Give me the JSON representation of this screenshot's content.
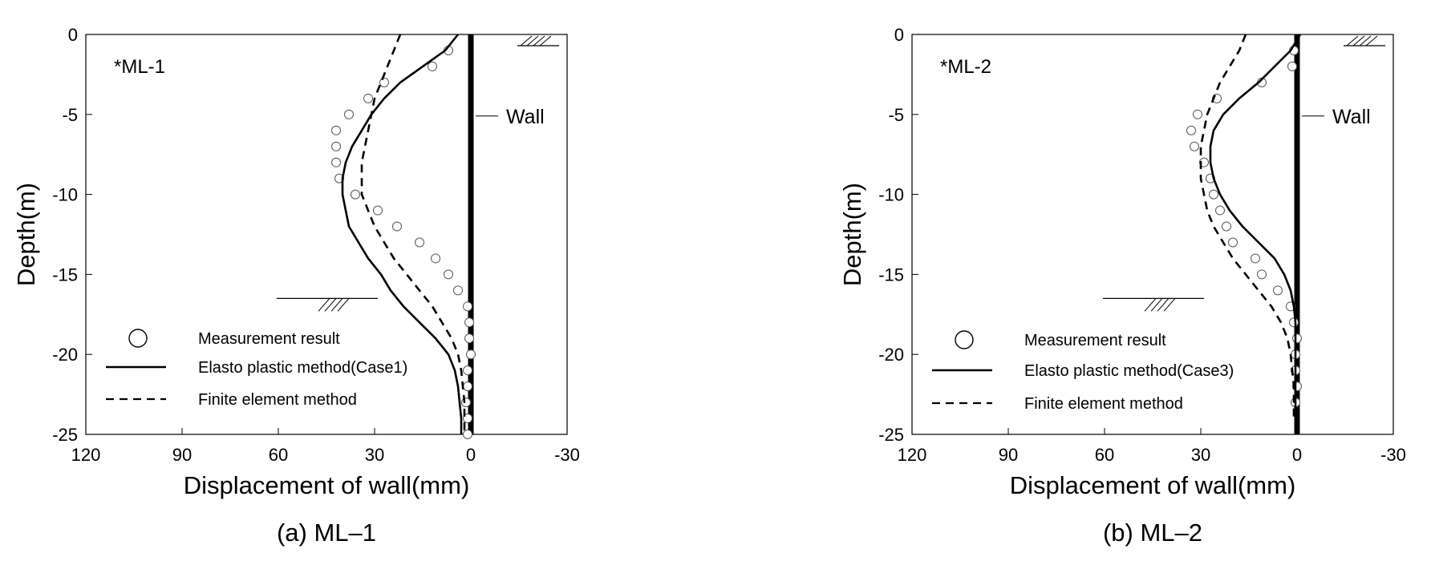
{
  "chart_data": [
    {
      "type": "scatter",
      "panel_label": "*ML-1",
      "caption": "(a) ML–1",
      "xlabel": "Displacement of wall(mm)",
      "ylabel": "Depth(m)",
      "xlim": [
        120,
        -30
      ],
      "ylim": [
        -25,
        0
      ],
      "x_ticks": [
        120,
        90,
        60,
        30,
        0,
        -30
      ],
      "y_ticks": [
        0,
        -5,
        -10,
        -15,
        -20,
        -25
      ],
      "wall_label": "Wall",
      "excavation_depth": -16.5,
      "legend": {
        "measurement": "Measurement result",
        "elasto_plastic": "Elasto plastic method(Case1)",
        "fem": "Finite element method"
      },
      "series": [
        {
          "name": "Measurement result",
          "style": "circle",
          "points": [
            [
              7,
              -1
            ],
            [
              12,
              -2
            ],
            [
              27,
              -3
            ],
            [
              32,
              -4
            ],
            [
              38,
              -5
            ],
            [
              42,
              -6
            ],
            [
              42,
              -7
            ],
            [
              42,
              -8
            ],
            [
              41,
              -9
            ],
            [
              36,
              -10
            ],
            [
              29,
              -11
            ],
            [
              23,
              -12
            ],
            [
              16,
              -13
            ],
            [
              11,
              -14
            ],
            [
              7,
              -15
            ],
            [
              4,
              -16
            ],
            [
              1,
              -17
            ],
            [
              0.5,
              -18
            ],
            [
              0.5,
              -19
            ],
            [
              0,
              -20
            ],
            [
              1,
              -21
            ],
            [
              1,
              -22
            ],
            [
              1.5,
              -23
            ],
            [
              1,
              -24
            ],
            [
              1,
              -25
            ]
          ]
        },
        {
          "name": "Elasto plastic method(Case1)",
          "style": "solid",
          "points": [
            [
              4,
              0
            ],
            [
              8,
              -1
            ],
            [
              15,
              -2
            ],
            [
              22,
              -3
            ],
            [
              27,
              -4
            ],
            [
              31,
              -5
            ],
            [
              34,
              -6
            ],
            [
              37,
              -7
            ],
            [
              39,
              -8
            ],
            [
              40,
              -9
            ],
            [
              40,
              -10
            ],
            [
              39,
              -11
            ],
            [
              38,
              -12
            ],
            [
              35,
              -13
            ],
            [
              32,
              -14
            ],
            [
              28,
              -15
            ],
            [
              25,
              -16
            ],
            [
              21,
              -17
            ],
            [
              16,
              -18
            ],
            [
              11,
              -19
            ],
            [
              7,
              -20
            ],
            [
              5,
              -21
            ],
            [
              4,
              -22
            ],
            [
              3.5,
              -23
            ],
            [
              3,
              -24
            ],
            [
              3,
              -25
            ]
          ]
        },
        {
          "name": "Finite element method",
          "style": "dashed",
          "points": [
            [
              22,
              0
            ],
            [
              24,
              -1
            ],
            [
              26,
              -2
            ],
            [
              28,
              -3
            ],
            [
              30,
              -4
            ],
            [
              31,
              -5
            ],
            [
              32,
              -6
            ],
            [
              33,
              -7
            ],
            [
              34,
              -8
            ],
            [
              34,
              -9
            ],
            [
              34,
              -10
            ],
            [
              32,
              -11
            ],
            [
              30,
              -12
            ],
            [
              27,
              -13
            ],
            [
              24,
              -14
            ],
            [
              20,
              -15
            ],
            [
              16,
              -16
            ],
            [
              12,
              -17
            ],
            [
              9,
              -18
            ],
            [
              6,
              -19
            ],
            [
              4,
              -20
            ],
            [
              3,
              -21
            ],
            [
              2.5,
              -22
            ],
            [
              2,
              -23
            ],
            [
              2,
              -24
            ],
            [
              2,
              -25
            ]
          ]
        }
      ]
    },
    {
      "type": "scatter",
      "panel_label": "*ML-2",
      "caption": "(b) ML–2",
      "xlabel": "Displacement of wall(mm)",
      "ylabel": "Depth(m)",
      "xlim": [
        120,
        -30
      ],
      "ylim": [
        -25,
        0
      ],
      "x_ticks": [
        120,
        90,
        60,
        30,
        0,
        -30
      ],
      "y_ticks": [
        0,
        -5,
        -10,
        -15,
        -20,
        -25
      ],
      "wall_label": "Wall",
      "excavation_depth": -16.5,
      "legend": {
        "measurement": "Measurement result",
        "elasto_plastic": "Elasto plastic method(Case3)",
        "fem": "Finite element method"
      },
      "series": [
        {
          "name": "Measurement result",
          "style": "circle",
          "points": [
            [
              1,
              -1
            ],
            [
              1.5,
              -2
            ],
            [
              11,
              -3
            ],
            [
              25,
              -4
            ],
            [
              31,
              -5
            ],
            [
              33,
              -6
            ],
            [
              32,
              -7
            ],
            [
              29,
              -8
            ],
            [
              27,
              -9
            ],
            [
              26,
              -10
            ],
            [
              24,
              -11
            ],
            [
              22,
              -12
            ],
            [
              20,
              -13
            ],
            [
              13,
              -14
            ],
            [
              11,
              -15
            ],
            [
              6,
              -16
            ],
            [
              2,
              -17
            ],
            [
              1,
              -18
            ],
            [
              0,
              -19
            ],
            [
              0.5,
              -20
            ],
            [
              0.5,
              -21
            ],
            [
              0,
              -22
            ],
            [
              0.5,
              -23
            ]
          ]
        },
        {
          "name": "Elasto plastic method(Case3)",
          "style": "solid",
          "points": [
            [
              -1,
              0
            ],
            [
              2,
              -1
            ],
            [
              7,
              -2
            ],
            [
              12,
              -3
            ],
            [
              18,
              -4
            ],
            [
              23,
              -5
            ],
            [
              26,
              -6
            ],
            [
              27,
              -7
            ],
            [
              27,
              -8
            ],
            [
              26,
              -9
            ],
            [
              24,
              -10
            ],
            [
              21,
              -11
            ],
            [
              17,
              -12
            ],
            [
              12,
              -13
            ],
            [
              7,
              -14
            ],
            [
              4,
              -15
            ],
            [
              2,
              -16
            ],
            [
              1,
              -17
            ],
            [
              0.5,
              -18
            ],
            [
              0.5,
              -19
            ],
            [
              0.5,
              -20
            ],
            [
              0.5,
              -21
            ],
            [
              0.5,
              -22
            ],
            [
              0.5,
              -23
            ],
            [
              0.5,
              -24
            ]
          ]
        },
        {
          "name": "Finite element method",
          "style": "dashed",
          "points": [
            [
              16,
              0
            ],
            [
              18,
              -1
            ],
            [
              21,
              -2
            ],
            [
              24,
              -3
            ],
            [
              26,
              -4
            ],
            [
              28,
              -5
            ],
            [
              29,
              -6
            ],
            [
              30,
              -7
            ],
            [
              30,
              -8
            ],
            [
              30,
              -9
            ],
            [
              29,
              -10
            ],
            [
              28,
              -11
            ],
            [
              26,
              -12
            ],
            [
              23,
              -13
            ],
            [
              20,
              -14
            ],
            [
              16,
              -15
            ],
            [
              12,
              -16
            ],
            [
              8,
              -17
            ],
            [
              5,
              -18
            ],
            [
              3,
              -19
            ],
            [
              2,
              -20
            ],
            [
              1.5,
              -21
            ],
            [
              1,
              -22
            ],
            [
              1,
              -23
            ],
            [
              1,
              -24
            ]
          ]
        }
      ]
    }
  ]
}
